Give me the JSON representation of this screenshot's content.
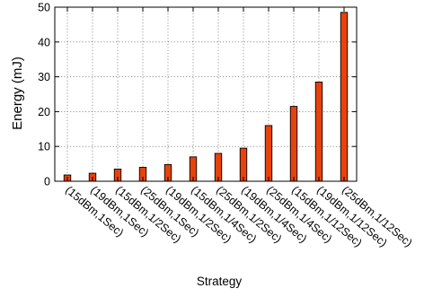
{
  "chart_data": {
    "type": "bar",
    "title": "",
    "xlabel": "Strategy",
    "ylabel": "Energy (mJ)",
    "ylim": [
      0,
      50
    ],
    "yticks": [
      0,
      10,
      20,
      30,
      40,
      50
    ],
    "grid": true,
    "bar_color": "#e8420c",
    "bar_edge_color": "#000000",
    "categories": [
      "(15dBm,1Sec)",
      "(19dBm,1Sec)",
      "(15dBm,1/2Sec)",
      "(25dBm,1Sec)",
      "(19dBm,1/2Sec)",
      "(15dBm,1/4Sec)",
      "(25dBm,1/2Sec)",
      "(19dBm,1/4Sec)",
      "(25dBm,1/4Sec)",
      "(15dBm,1/12Sec)",
      "(19dBm,1/12Sec)",
      "(25dBm,1/12Sec)"
    ],
    "values": [
      1.8,
      2.3,
      3.5,
      4.0,
      4.8,
      7.0,
      8.0,
      9.5,
      16.0,
      21.5,
      28.5,
      48.5
    ]
  }
}
